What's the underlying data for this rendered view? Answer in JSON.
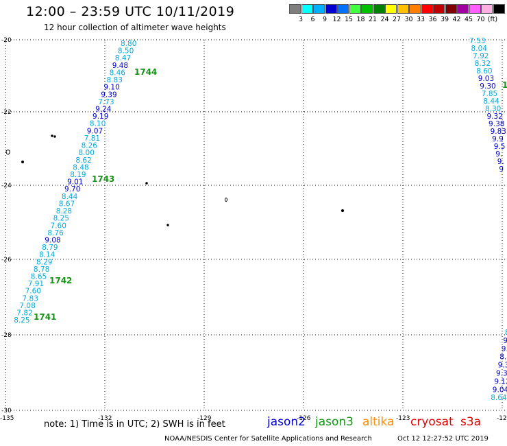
{
  "header": {
    "title": "12:00 – 23:59 UTC 10/11/2019",
    "subtitle": "12 hour collection of altimeter wave heights"
  },
  "scale": {
    "colors": [
      "#7f7f7f",
      "#00ffff",
      "#00b0ff",
      "#0000d0",
      "#0070ff",
      "#40ff40",
      "#00c000",
      "#008000",
      "#ffff00",
      "#ffc000",
      "#ff8000",
      "#ff0000",
      "#c00000",
      "#800000",
      "#a000a0",
      "#ff60ff",
      "#ffb0e0",
      "#000000"
    ],
    "ticks": [
      "3",
      "6",
      "9",
      "12",
      "15",
      "18",
      "21",
      "24",
      "27",
      "30",
      "33",
      "36",
      "39",
      "42",
      "45",
      "70"
    ],
    "unit": "(ft)"
  },
  "axes": {
    "lat_labels": [
      "-20",
      "-22",
      "-24",
      "-26",
      "-28",
      "-30"
    ],
    "lon_labels": [
      "-135",
      "-132",
      "-129",
      "-126",
      "-123",
      "-12"
    ]
  },
  "track_west": [
    {
      "v": "8.80",
      "c": "#00aadd"
    },
    {
      "v": "8.50",
      "c": "#00aadd"
    },
    {
      "v": "8.47",
      "c": "#00aadd"
    },
    {
      "v": "9.48",
      "c": "#0000cc"
    },
    {
      "v": "8.46",
      "c": "#00aadd"
    },
    {
      "v": "8.83",
      "c": "#00aadd"
    },
    {
      "v": "9.10",
      "c": "#0000cc"
    },
    {
      "v": "9.39",
      "c": "#0000cc"
    },
    {
      "v": "7.73",
      "c": "#00aadd"
    },
    {
      "v": "9.24",
      "c": "#0000cc"
    },
    {
      "v": "9.19",
      "c": "#0000cc"
    },
    {
      "v": "8.10",
      "c": "#00aadd"
    },
    {
      "v": "9.07",
      "c": "#0000cc"
    },
    {
      "v": "7.81",
      "c": "#00aadd"
    },
    {
      "v": "8.26",
      "c": "#00aadd"
    },
    {
      "v": "8.00",
      "c": "#00aadd"
    },
    {
      "v": "8.62",
      "c": "#00aadd"
    },
    {
      "v": "8.48",
      "c": "#00aadd"
    },
    {
      "v": "8.19",
      "c": "#00aadd"
    },
    {
      "v": "9.01",
      "c": "#0000cc"
    },
    {
      "v": "9.70",
      "c": "#0000cc"
    },
    {
      "v": "8.44",
      "c": "#00aadd"
    },
    {
      "v": "8.67",
      "c": "#00aadd"
    },
    {
      "v": "8.28",
      "c": "#00aadd"
    },
    {
      "v": "8.25",
      "c": "#00aadd"
    },
    {
      "v": "7.60",
      "c": "#00aadd"
    },
    {
      "v": "8.76",
      "c": "#00aadd"
    },
    {
      "v": "9.08",
      "c": "#0000cc"
    },
    {
      "v": "8.79",
      "c": "#00aadd"
    },
    {
      "v": "8.14",
      "c": "#00aadd"
    },
    {
      "v": "8.29",
      "c": "#00aadd"
    },
    {
      "v": "8.78",
      "c": "#00aadd"
    },
    {
      "v": "8.65",
      "c": "#00aadd"
    },
    {
      "v": "7.91",
      "c": "#00aadd"
    },
    {
      "v": "7.60",
      "c": "#00aadd"
    },
    {
      "v": "7.83",
      "c": "#00aadd"
    },
    {
      "v": "7.08",
      "c": "#00aadd"
    },
    {
      "v": "7.82",
      "c": "#00aadd"
    },
    {
      "v": "8.25",
      "c": "#00aadd"
    }
  ],
  "track_east_upper": [
    {
      "v": "7.53",
      "c": "#00aadd"
    },
    {
      "v": "8.04",
      "c": "#00aadd"
    },
    {
      "v": "7.92",
      "c": "#00aadd"
    },
    {
      "v": "8.32",
      "c": "#00aadd"
    },
    {
      "v": "8.60",
      "c": "#00aadd"
    },
    {
      "v": "9.03",
      "c": "#0000cc"
    },
    {
      "v": "9.30",
      "c": "#0000cc"
    },
    {
      "v": "7.85",
      "c": "#00aadd"
    },
    {
      "v": "8.44",
      "c": "#00aadd"
    },
    {
      "v": "8.30",
      "c": "#00aadd"
    },
    {
      "v": "9.32",
      "c": "#0000cc"
    },
    {
      "v": "9.38",
      "c": "#0000cc"
    },
    {
      "v": "9.83",
      "c": "#0000cc"
    },
    {
      "v": "9.9",
      "c": "#0000cc"
    },
    {
      "v": "9.5",
      "c": "#0000cc"
    },
    {
      "v": "9.",
      "c": "#0000cc"
    },
    {
      "v": "9.",
      "c": "#0000cc"
    },
    {
      "v": "9",
      "c": "#0000cc"
    }
  ],
  "track_east_lower": [
    {
      "v": "8",
      "c": "#00aadd"
    },
    {
      "v": "9",
      "c": "#0000cc"
    },
    {
      "v": "9.",
      "c": "#0000cc"
    },
    {
      "v": "8.9",
      "c": "#0000cc"
    },
    {
      "v": "9.3",
      "c": "#0000cc"
    },
    {
      "v": "9.3",
      "c": "#0000cc"
    },
    {
      "v": "9.12",
      "c": "#0000cc"
    },
    {
      "v": "9.04",
      "c": "#0000cc"
    },
    {
      "v": "8.64",
      "c": "#00aadd"
    }
  ],
  "revs": [
    "1744",
    "1743",
    "1742",
    "1741",
    "1"
  ],
  "rev_partial_color": "#ff8c00",
  "footer": {
    "note": "note:  1) Time is in UTC;  2) SWH is in feet",
    "satellites": [
      {
        "name": "jason2",
        "color": "#0000cc"
      },
      {
        "name": "jason3",
        "color": "#159415"
      },
      {
        "name": "altika",
        "color": "#ff8c00"
      },
      {
        "name": "cryosat",
        "color": "#e00000"
      },
      {
        "name": "s3a",
        "color": "#e00000"
      }
    ],
    "credit": "NOAA/NESDIS Center for Satellite Applications and Research",
    "timestamp": "Oct 12 12:27:52 UTC 2019"
  }
}
